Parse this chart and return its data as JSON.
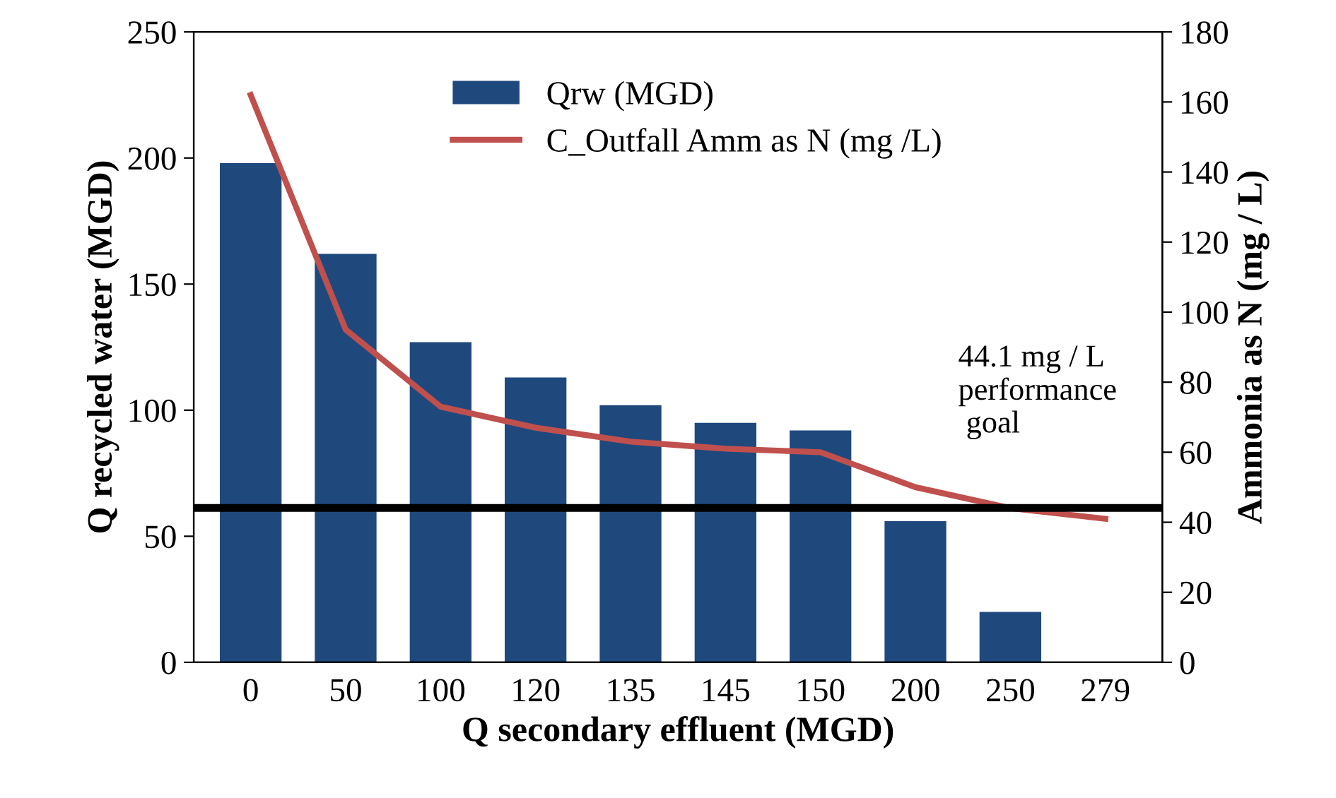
{
  "chart_data": {
    "type": "bar",
    "xlabel": "Q secondary effluent (MGD)",
    "ylabel": "Q recycled water (MGD)",
    "y2label": "Ammonia as N (mg / L)",
    "categories": [
      "0",
      "50",
      "100",
      "120",
      "135",
      "145",
      "150",
      "200",
      "250",
      "279"
    ],
    "series": [
      {
        "name": "Qrw (MGD)",
        "color": "#1f497d",
        "values": [
          198,
          162,
          127,
          113,
          102,
          95,
          92,
          56,
          20,
          0
        ]
      },
      {
        "name": "C_Outfall Amm as N (mg /L)",
        "type": "line",
        "axis": "y2",
        "color": "#c0504d",
        "values": [
          162,
          95,
          73,
          67,
          63,
          61,
          60,
          50,
          44,
          41
        ]
      }
    ],
    "ylim": [
      0,
      250
    ],
    "yticks": [
      0,
      50,
      100,
      150,
      200,
      250
    ],
    "y2lim": [
      0,
      180
    ],
    "y2ticks": [
      0,
      20,
      40,
      60,
      80,
      100,
      120,
      140,
      160,
      180
    ],
    "ref_lines": [
      {
        "axis": "y2",
        "value": 44.1,
        "label": "44.1 mg / L\nperformance\n goal",
        "color": "#000000"
      }
    ],
    "legend": "top",
    "grid": false,
    "marker": "none"
  }
}
